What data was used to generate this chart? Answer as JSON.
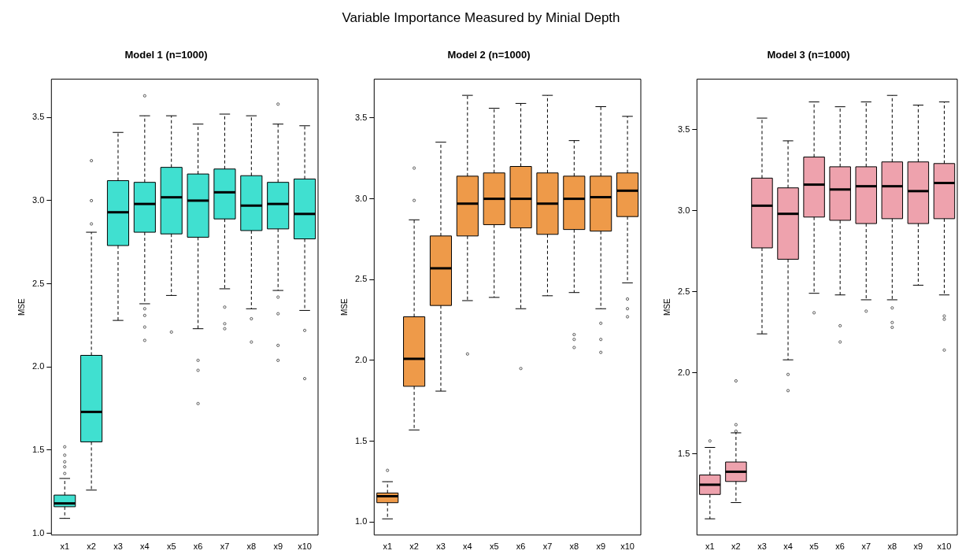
{
  "chart_data": [
    {
      "type": "box",
      "title": "Model 1 (n=1000)",
      "ylabel": "MSE",
      "annotations": [
        "Variable Importance Measured by Minial Depth"
      ],
      "grid": false,
      "categories": [
        "x1",
        "x2",
        "x3",
        "x4",
        "x5",
        "x6",
        "x7",
        "x8",
        "x9",
        "x10"
      ],
      "ylim": [
        0.99,
        3.73
      ],
      "yticks": [
        {
          "value": 1,
          "label": "1.0"
        },
        1.5,
        {
          "value": 2,
          "label": "2.0"
        },
        2.5,
        {
          "value": 3,
          "label": "3.0"
        },
        3.5
      ],
      "series": [
        {
          "color": "#40e0d0",
          "boxes": [
            {
              "low": 1.09,
              "q1": 1.16,
              "median": 1.18,
              "q3": 1.23,
              "high": 1.33,
              "outliers": [
                1.52,
                1.47,
                1.43,
                1.4,
                1.36
              ]
            },
            {
              "low": 1.26,
              "q1": 1.55,
              "median": 1.73,
              "q3": 2.07,
              "high": 2.81,
              "outliers": [
                3.24,
                3.0,
                2.86
              ]
            },
            {
              "low": 2.28,
              "q1": 2.73,
              "median": 2.93,
              "q3": 3.12,
              "high": 3.41
            },
            {
              "low": 2.38,
              "q1": 2.81,
              "median": 2.98,
              "q3": 3.11,
              "high": 3.51,
              "outliers": [
                3.63,
                2.35,
                2.31,
                2.24,
                2.16
              ]
            },
            {
              "low": 2.43,
              "q1": 2.8,
              "median": 3.02,
              "q3": 3.2,
              "high": 3.51,
              "outliers": [
                2.21
              ]
            },
            {
              "low": 2.23,
              "q1": 2.78,
              "median": 3.0,
              "q3": 3.16,
              "high": 3.46,
              "outliers": [
                2.04,
                1.98,
                1.78
              ]
            },
            {
              "low": 2.47,
              "q1": 2.89,
              "median": 3.05,
              "q3": 3.19,
              "high": 3.52,
              "outliers": [
                2.36,
                2.26,
                2.23
              ]
            },
            {
              "low": 2.35,
              "q1": 2.82,
              "median": 2.97,
              "q3": 3.15,
              "high": 3.51,
              "outliers": [
                2.29,
                2.15
              ]
            },
            {
              "low": 2.46,
              "q1": 2.83,
              "median": 2.98,
              "q3": 3.11,
              "high": 3.46,
              "outliers": [
                3.58,
                2.42,
                2.32,
                2.13,
                2.04
              ]
            },
            {
              "low": 2.34,
              "q1": 2.77,
              "median": 2.92,
              "q3": 3.13,
              "high": 3.45,
              "outliers": [
                2.22,
                1.93
              ]
            }
          ]
        }
      ]
    },
    {
      "type": "box",
      "title": "Model 2 (n=1000)",
      "ylabel": "MSE",
      "grid": false,
      "categories": [
        "x1",
        "x2",
        "x3",
        "x4",
        "x5",
        "x6",
        "x7",
        "x8",
        "x9",
        "x10"
      ],
      "ylim": [
        0.92,
        3.74
      ],
      "yticks": [
        {
          "value": 1,
          "label": "1.0"
        },
        1.5,
        {
          "value": 2,
          "label": "2.0"
        },
        2.5,
        {
          "value": 3,
          "label": "3.0"
        },
        3.5
      ],
      "series": [
        {
          "color": "#ee9a49",
          "boxes": [
            {
              "low": 1.02,
              "q1": 1.12,
              "median": 1.16,
              "q3": 1.18,
              "high": 1.25,
              "outliers": [
                1.32
              ]
            },
            {
              "low": 1.57,
              "q1": 1.84,
              "median": 2.01,
              "q3": 2.27,
              "high": 2.87,
              "outliers": [
                3.19,
                2.99
              ]
            },
            {
              "low": 1.81,
              "q1": 2.34,
              "median": 2.57,
              "q3": 2.77,
              "high": 3.35
            },
            {
              "low": 2.37,
              "q1": 2.77,
              "median": 2.97,
              "q3": 3.14,
              "high": 3.64,
              "outliers": [
                2.04
              ]
            },
            {
              "low": 2.39,
              "q1": 2.84,
              "median": 3.0,
              "q3": 3.16,
              "high": 3.56
            },
            {
              "low": 2.32,
              "q1": 2.82,
              "median": 3.0,
              "q3": 3.2,
              "high": 3.59,
              "outliers": [
                1.95
              ]
            },
            {
              "low": 2.4,
              "q1": 2.78,
              "median": 2.97,
              "q3": 3.16,
              "high": 3.64
            },
            {
              "low": 2.42,
              "q1": 2.81,
              "median": 3.0,
              "q3": 3.14,
              "high": 3.36,
              "outliers": [
                2.16,
                2.13,
                2.08
              ]
            },
            {
              "low": 2.32,
              "q1": 2.8,
              "median": 3.01,
              "q3": 3.14,
              "high": 3.57,
              "outliers": [
                2.23,
                2.13,
                2.05
              ]
            },
            {
              "low": 2.48,
              "q1": 2.89,
              "median": 3.05,
              "q3": 3.16,
              "high": 3.51,
              "outliers": [
                2.38,
                2.32,
                2.27
              ]
            }
          ]
        }
      ]
    },
    {
      "type": "box",
      "title": "Model 3 (n=1000)",
      "ylabel": "MSE",
      "grid": false,
      "categories": [
        "x1",
        "x2",
        "x3",
        "x4",
        "x5",
        "x6",
        "x7",
        "x8",
        "x9",
        "x10"
      ],
      "ylim": [
        1.0,
        3.81
      ],
      "yticks": [
        1.5,
        {
          "value": 2,
          "label": "2.0"
        },
        2.5,
        {
          "value": 3,
          "label": "3.0"
        },
        3.5
      ],
      "series": [
        {
          "color": "#eea2ad",
          "boxes": [
            {
              "low": 1.1,
              "q1": 1.25,
              "median": 1.31,
              "q3": 1.37,
              "high": 1.54,
              "outliers": [
                1.58
              ]
            },
            {
              "low": 1.2,
              "q1": 1.33,
              "median": 1.39,
              "q3": 1.45,
              "high": 1.63,
              "outliers": [
                1.95,
                1.68,
                1.64
              ]
            },
            {
              "low": 2.24,
              "q1": 2.77,
              "median": 3.03,
              "q3": 3.2,
              "high": 3.57
            },
            {
              "low": 2.08,
              "q1": 2.7,
              "median": 2.98,
              "q3": 3.14,
              "high": 3.43,
              "outliers": [
                1.99,
                1.89
              ]
            },
            {
              "low": 2.49,
              "q1": 2.96,
              "median": 3.16,
              "q3": 3.33,
              "high": 3.67,
              "outliers": [
                2.37
              ]
            },
            {
              "low": 2.48,
              "q1": 2.94,
              "median": 3.13,
              "q3": 3.27,
              "high": 3.64,
              "outliers": [
                2.29,
                2.19
              ]
            },
            {
              "low": 2.45,
              "q1": 2.92,
              "median": 3.15,
              "q3": 3.27,
              "high": 3.67,
              "outliers": [
                2.38
              ]
            },
            {
              "low": 2.45,
              "q1": 2.95,
              "median": 3.15,
              "q3": 3.3,
              "high": 3.71,
              "outliers": [
                2.4,
                2.31,
                2.28
              ]
            },
            {
              "low": 2.54,
              "q1": 2.92,
              "median": 3.12,
              "q3": 3.3,
              "high": 3.65
            },
            {
              "low": 2.48,
              "q1": 2.95,
              "median": 3.17,
              "q3": 3.29,
              "high": 3.67,
              "outliers": [
                2.35,
                2.33,
                2.14
              ]
            }
          ]
        }
      ]
    }
  ]
}
